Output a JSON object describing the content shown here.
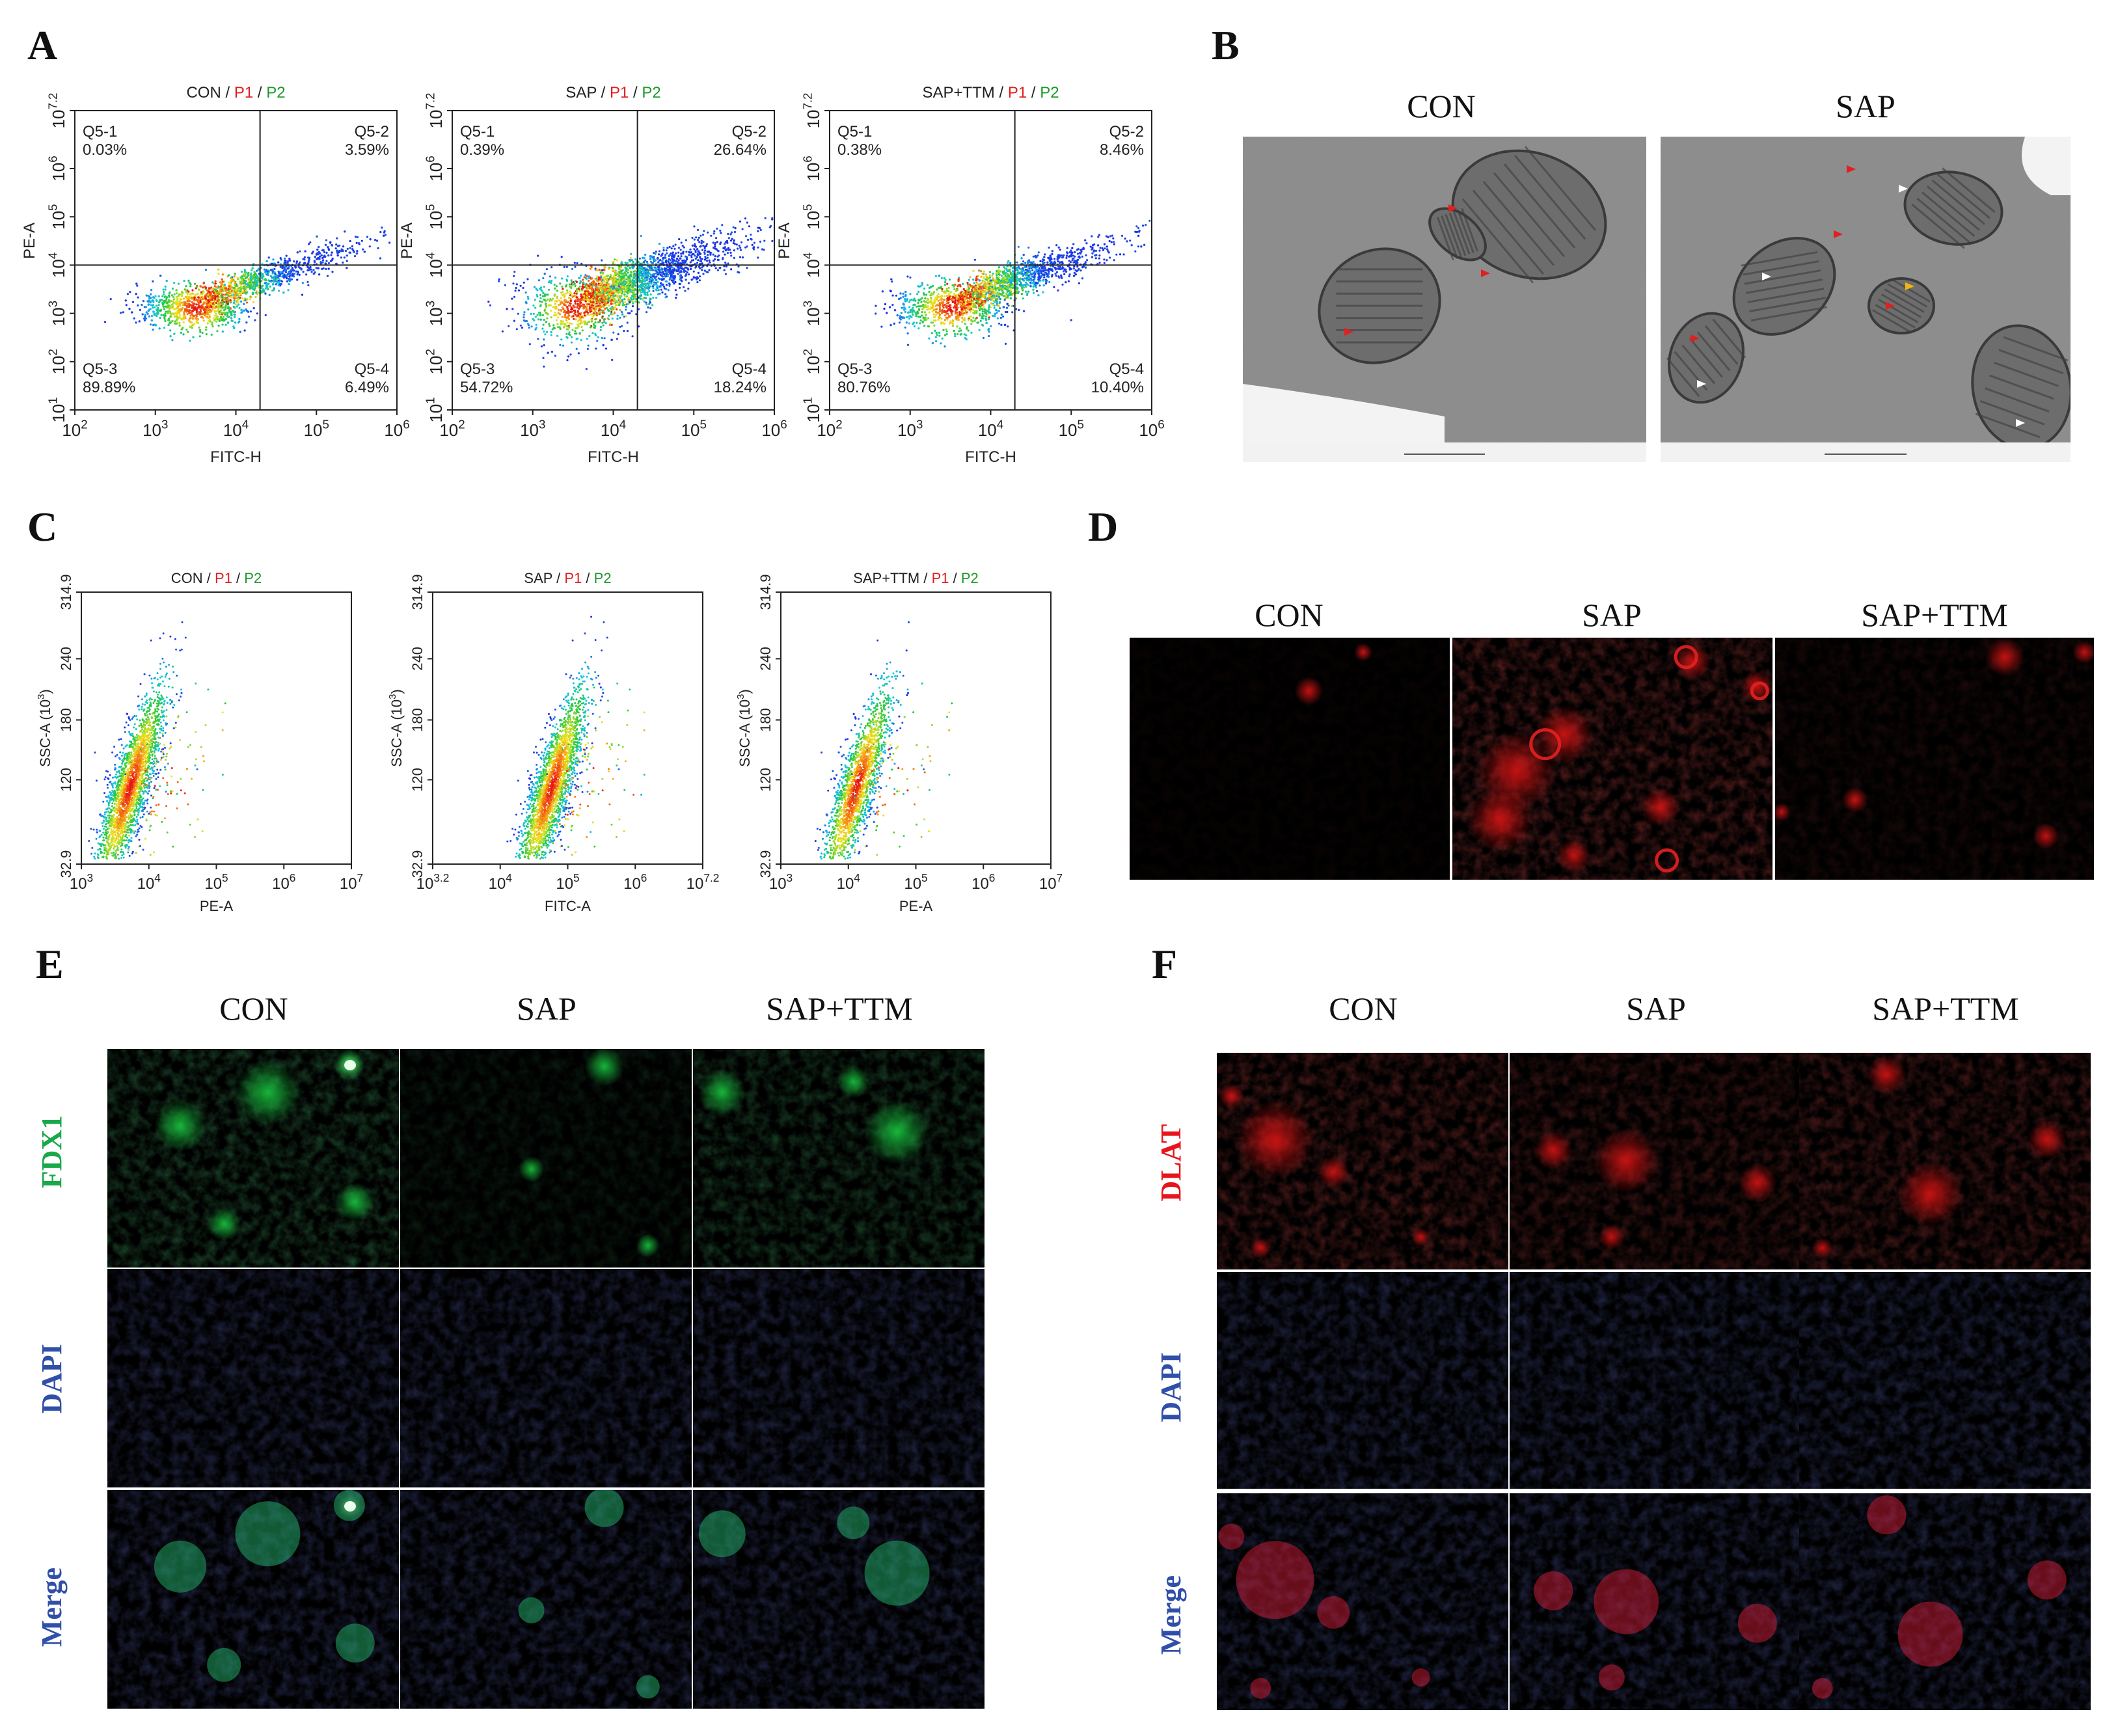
{
  "panels": {
    "A": {
      "letter": "A",
      "plots": [
        {
          "sample": "CON",
          "p1": "P1",
          "p2": "P2",
          "xlabel": "FITC-H",
          "ylabel": "PE-A",
          "q1_name": "Q5-1",
          "q1_val": "0.03%",
          "q2_name": "Q5-2",
          "q2_val": "3.59%",
          "q3_name": "Q5-3",
          "q3_val": "89.89%",
          "q4_name": "Q5-4",
          "q4_val": "6.49%"
        },
        {
          "sample": "SAP",
          "p1": "P1",
          "p2": "P2",
          "xlabel": "FITC-H",
          "ylabel": "PE-A",
          "q1_name": "Q5-1",
          "q1_val": "0.39%",
          "q2_name": "Q5-2",
          "q2_val": "26.64%",
          "q3_name": "Q5-3",
          "q3_val": "54.72%",
          "q4_name": "Q5-4",
          "q4_val": "18.24%"
        },
        {
          "sample": "SAP+TTM",
          "p1": "P1",
          "p2": "P2",
          "xlabel": "FITC-H",
          "ylabel": "PE-A",
          "q1_name": "Q5-1",
          "q1_val": "0.38%",
          "q2_name": "Q5-2",
          "q2_val": "8.46%",
          "q3_name": "Q5-3",
          "q3_val": "80.76%",
          "q4_name": "Q5-4",
          "q4_val": "10.40%"
        }
      ],
      "xticks": [
        {
          "b": "10",
          "e": "2"
        },
        {
          "b": "10",
          "e": "3"
        },
        {
          "b": "10",
          "e": "4"
        },
        {
          "b": "10",
          "e": "5"
        },
        {
          "b": "10",
          "e": "6"
        }
      ],
      "yticks": [
        {
          "b": "10",
          "e": "1"
        },
        {
          "b": "10",
          "e": "2"
        },
        {
          "b": "10",
          "e": "3"
        },
        {
          "b": "10",
          "e": "4"
        },
        {
          "b": "10",
          "e": "5"
        },
        {
          "b": "10",
          "e": "6"
        },
        {
          "b": "10",
          "e": "7.2"
        }
      ]
    },
    "B": {
      "letter": "B",
      "titles": [
        "CON",
        "SAP"
      ]
    },
    "C": {
      "letter": "C",
      "plots": [
        {
          "sample": "CON",
          "p1": "P1",
          "p2": "P2",
          "xlabel": "PE-A",
          "ylabel": "SSC-A (10",
          "ylabel_exp": "3",
          "ylabel_end": ")",
          "xticks": [
            {
              "b": "10",
              "e": "3"
            },
            {
              "b": "10",
              "e": "4"
            },
            {
              "b": "10",
              "e": "5"
            },
            {
              "b": "10",
              "e": "6"
            },
            {
              "b": "10",
              "e": "7"
            }
          ]
        },
        {
          "sample": "SAP",
          "p1": "P1",
          "p2": "P2",
          "xlabel": "FITC-A",
          "ylabel": "SSC-A (10",
          "ylabel_exp": "3",
          "ylabel_end": ")",
          "xticks": [
            {
              "b": "10",
              "e": "3.2"
            },
            {
              "b": "10",
              "e": "4"
            },
            {
              "b": "10",
              "e": "5"
            },
            {
              "b": "10",
              "e": "6"
            },
            {
              "b": "10",
              "e": "7.2"
            }
          ]
        },
        {
          "sample": "SAP+TTM",
          "p1": "P1",
          "p2": "P2",
          "xlabel": "PE-A",
          "ylabel": "SSC-A (10",
          "ylabel_exp": "3",
          "ylabel_end": ")",
          "xticks": [
            {
              "b": "10",
              "e": "3"
            },
            {
              "b": "10",
              "e": "4"
            },
            {
              "b": "10",
              "e": "5"
            },
            {
              "b": "10",
              "e": "6"
            },
            {
              "b": "10",
              "e": "7"
            }
          ]
        }
      ],
      "yticks": [
        "32.9",
        "120",
        "180",
        "240",
        "314.9"
      ]
    },
    "D": {
      "letter": "D",
      "titles": [
        "CON",
        "SAP",
        "SAP+TTM"
      ]
    },
    "E": {
      "letter": "E",
      "titles": [
        "CON",
        "SAP",
        "SAP+TTM"
      ],
      "rows": [
        "FDX1",
        "DAPI",
        "Merge"
      ]
    },
    "F": {
      "letter": "F",
      "titles": [
        "CON",
        "SAP",
        "SAP+TTM"
      ],
      "rows": [
        "DLAT",
        "DAPI",
        "Merge"
      ]
    }
  },
  "colors": {
    "p1": "#e0201e",
    "p2": "#1c9a2a",
    "fdx1": "#1aa84a",
    "dapi": "#2f4fa8",
    "dlat": "#e8141c",
    "merge": "#2f4fa8"
  }
}
